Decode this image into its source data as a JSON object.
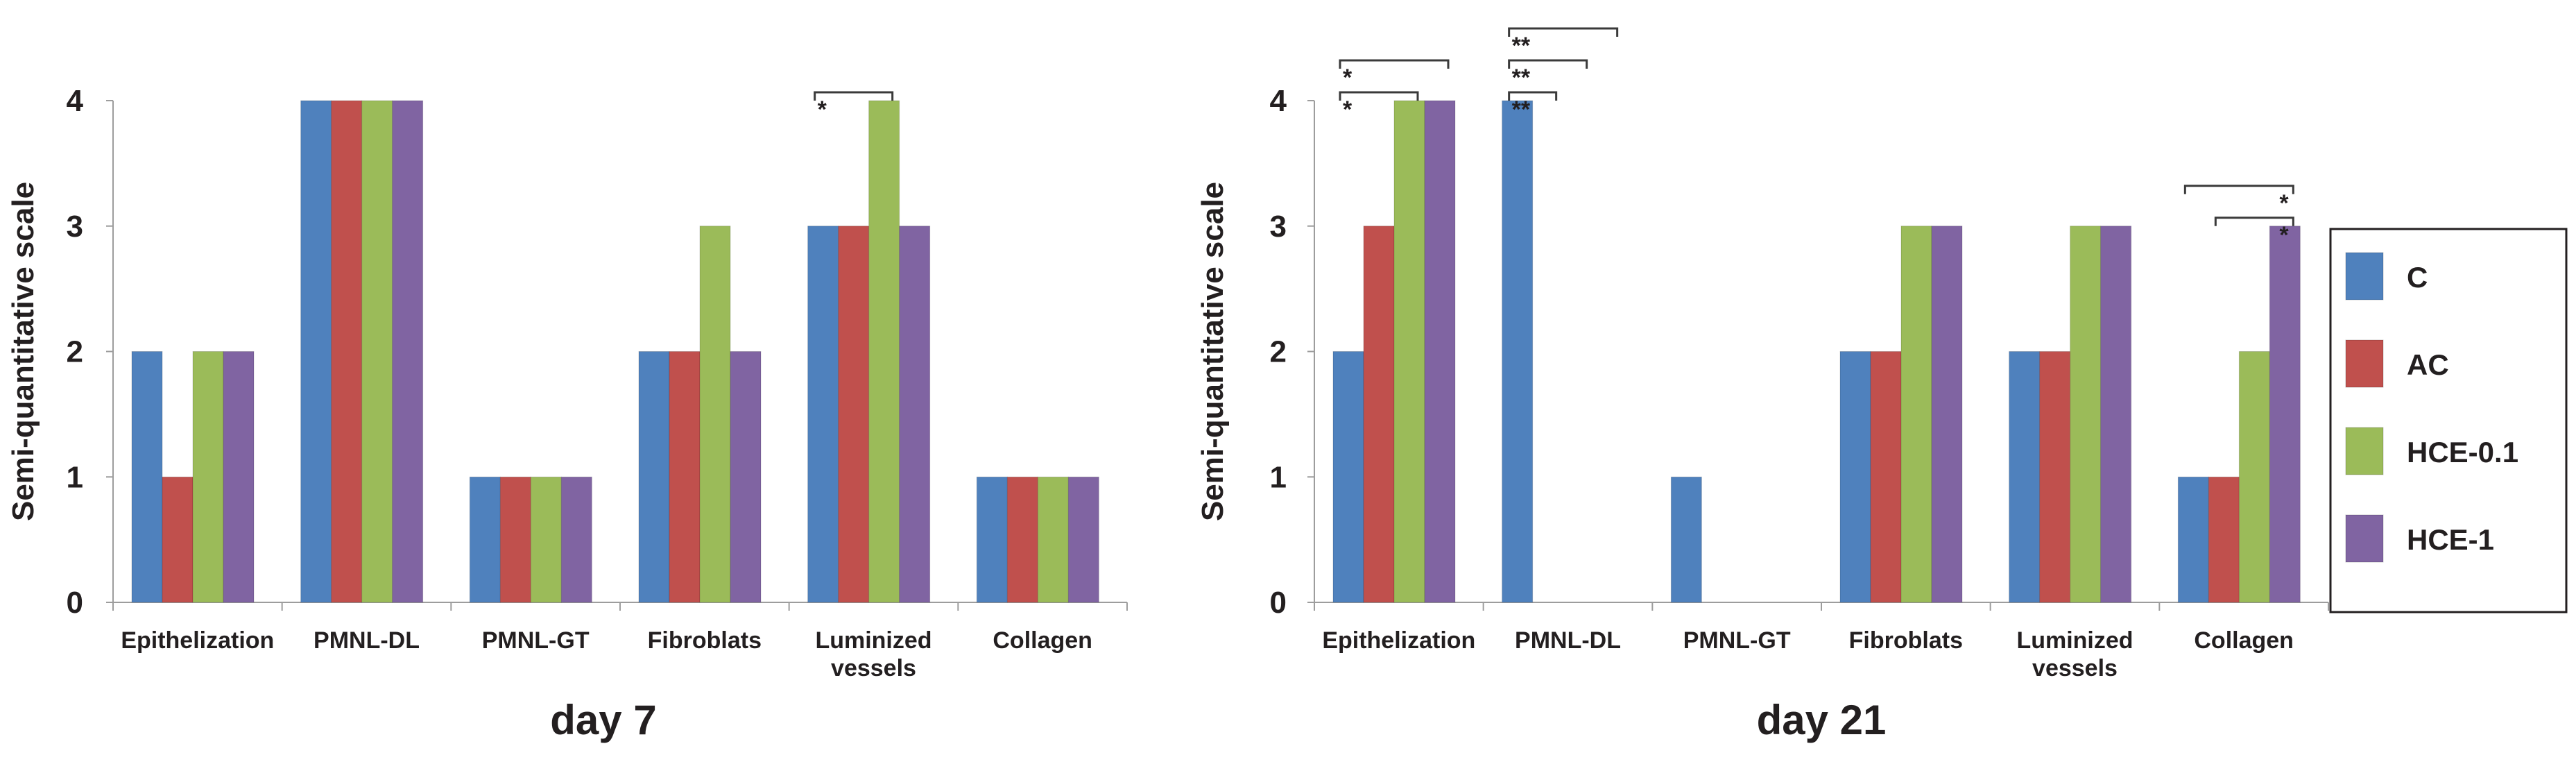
{
  "chart_data": [
    {
      "type": "bar",
      "title": "day 7",
      "ylabel": "Semi-quantitative scale",
      "xlabel": "",
      "ylim": [
        0,
        4
      ],
      "yticks": [
        "0",
        "1",
        "2",
        "3",
        "4"
      ],
      "categories": [
        [
          "Epithelization"
        ],
        [
          "PMNL-DL"
        ],
        [
          "PMNL-GT"
        ],
        [
          "Fibroblats"
        ],
        [
          "Luminized",
          "vessels"
        ],
        [
          "Collagen"
        ]
      ],
      "series": [
        {
          "name": "C",
          "values": [
            2,
            4,
            1,
            2,
            3,
            1
          ]
        },
        {
          "name": "AC",
          "values": [
            1,
            4,
            1,
            2,
            3,
            1
          ]
        },
        {
          "name": "HCE-0.1",
          "values": [
            2,
            4,
            1,
            3,
            4,
            1
          ]
        },
        {
          "name": "HCE-1",
          "values": [
            2,
            4,
            1,
            2,
            3,
            1
          ]
        }
      ],
      "significance": [
        {
          "category": 4,
          "from": 0,
          "to": 2,
          "label": "*",
          "level": 1
        }
      ]
    },
    {
      "type": "bar",
      "title": "day 21",
      "ylabel": "Semi-quantitative scale",
      "xlabel": "",
      "ylim": [
        0,
        4
      ],
      "yticks": [
        "0",
        "1",
        "2",
        "3",
        "4"
      ],
      "categories": [
        [
          "Epithelization"
        ],
        [
          "PMNL-DL"
        ],
        [
          "PMNL-GT"
        ],
        [
          "Fibroblats"
        ],
        [
          "Luminized",
          "vessels"
        ],
        [
          "Collagen"
        ]
      ],
      "series": [
        {
          "name": "C",
          "values": [
            2,
            4,
            1,
            2,
            2,
            1
          ]
        },
        {
          "name": "AC",
          "values": [
            3,
            0,
            0,
            2,
            2,
            1
          ]
        },
        {
          "name": "HCE-0.1",
          "values": [
            4,
            0,
            0,
            3,
            3,
            2
          ]
        },
        {
          "name": "HCE-1",
          "values": [
            4,
            0,
            0,
            3,
            3,
            3
          ]
        }
      ],
      "significance": [
        {
          "category": 0,
          "from": 0,
          "to": 2,
          "label": "*",
          "level": 1
        },
        {
          "category": 0,
          "from": 0,
          "to": 3,
          "label": "*",
          "level": 2
        },
        {
          "category": 1,
          "from": 0,
          "to": 1,
          "label": "**",
          "level": 1
        },
        {
          "category": 1,
          "from": 0,
          "to": 2,
          "label": "**",
          "level": 2
        },
        {
          "category": 1,
          "from": 0,
          "to": 3,
          "label": "**",
          "level": 3
        },
        {
          "category": 5,
          "from": 1,
          "to": 3,
          "label": "*",
          "level": 1,
          "labelAt": "end"
        },
        {
          "category": 5,
          "from": 0,
          "to": 3,
          "label": "*",
          "level": 2,
          "labelAt": "end"
        }
      ]
    }
  ],
  "legend": {
    "items": [
      {
        "label": "C",
        "color": "#4f81bd"
      },
      {
        "label": "AC",
        "color": "#c0504d"
      },
      {
        "label": "HCE-0.1",
        "color": "#9bbb59"
      },
      {
        "label": "HCE-1",
        "color": "#8064a2"
      }
    ]
  }
}
